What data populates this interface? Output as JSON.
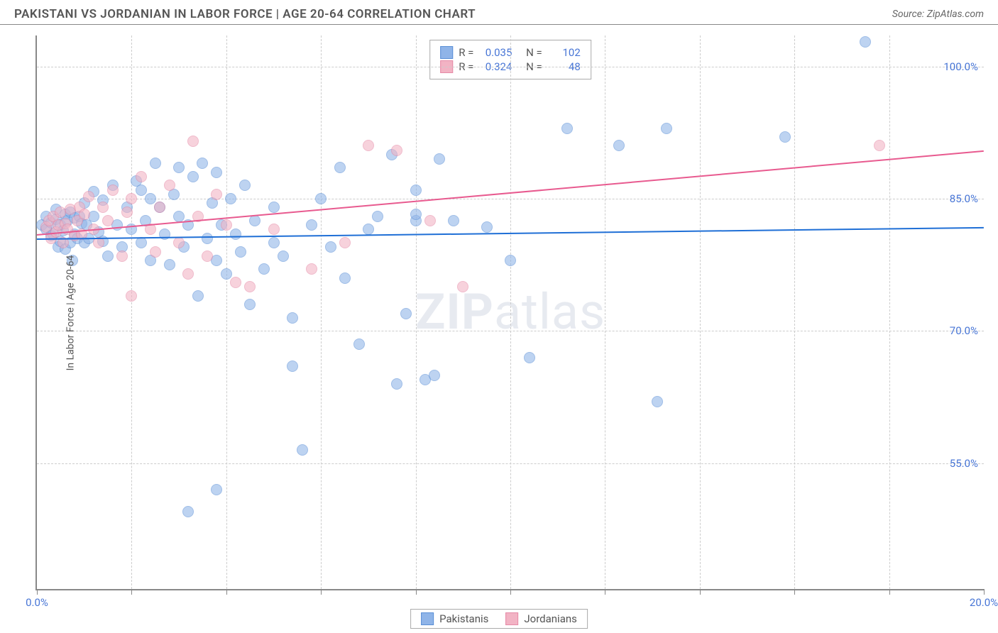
{
  "title": "PAKISTANI VS JORDANIAN IN LABOR FORCE | AGE 20-64 CORRELATION CHART",
  "source": "Source: ZipAtlas.com",
  "watermark_bold": "ZIP",
  "watermark_rest": "atlas",
  "ylabel": "In Labor Force | Age 20-64",
  "chart": {
    "type": "scatter",
    "xlim": [
      0,
      20
    ],
    "ylim": [
      40.75,
      103.5
    ],
    "ytick_values": [
      55.0,
      70.0,
      85.0,
      100.0
    ],
    "ytick_labels": [
      "55.0%",
      "70.0%",
      "85.0%",
      "100.0%"
    ],
    "xtick_values": [
      0,
      2,
      4,
      6,
      8,
      10,
      12,
      14,
      16,
      18,
      20
    ],
    "xtick_labels_shown": {
      "0": "0.0%",
      "20": "20.0%"
    },
    "grid_color": "#cccccc",
    "axis_color": "#888888",
    "label_color": "#4876d6",
    "background_color": "#ffffff",
    "point_radius": 8,
    "point_opacity": 0.58,
    "series": [
      {
        "name": "Pakistanis",
        "fill_color": "#8fb4e8",
        "stroke_color": "#5a8fd6",
        "line_color": "#1f6fd6",
        "R": "0.035",
        "N": "102",
        "trend": {
          "x1": 0,
          "y1": 80.5,
          "x2": 20,
          "y2": 81.8
        },
        "points": [
          [
            0.1,
            82.0
          ],
          [
            0.2,
            81.5
          ],
          [
            0.2,
            83.0
          ],
          [
            0.3,
            82.3
          ],
          [
            0.3,
            80.8
          ],
          [
            0.35,
            81.0
          ],
          [
            0.4,
            82.7
          ],
          [
            0.4,
            83.8
          ],
          [
            0.45,
            79.5
          ],
          [
            0.5,
            82.0
          ],
          [
            0.5,
            80.2
          ],
          [
            0.55,
            81.4
          ],
          [
            0.6,
            83.2
          ],
          [
            0.6,
            79.3
          ],
          [
            0.65,
            82.5
          ],
          [
            0.7,
            80.0
          ],
          [
            0.7,
            83.5
          ],
          [
            0.75,
            78.0
          ],
          [
            0.8,
            82.8
          ],
          [
            0.8,
            81.0
          ],
          [
            0.85,
            80.5
          ],
          [
            0.9,
            83.0
          ],
          [
            0.95,
            82.2
          ],
          [
            1.0,
            84.5
          ],
          [
            1.0,
            80.0
          ],
          [
            1.05,
            82.0
          ],
          [
            1.1,
            80.5
          ],
          [
            1.2,
            83.0
          ],
          [
            1.2,
            85.8
          ],
          [
            1.3,
            81.2
          ],
          [
            1.4,
            80.2
          ],
          [
            1.4,
            84.8
          ],
          [
            1.5,
            78.5
          ],
          [
            1.6,
            86.5
          ],
          [
            1.7,
            82.0
          ],
          [
            1.8,
            79.5
          ],
          [
            1.9,
            84.0
          ],
          [
            2.0,
            81.5
          ],
          [
            2.1,
            87.0
          ],
          [
            2.2,
            80.0
          ],
          [
            2.2,
            86.0
          ],
          [
            2.3,
            82.5
          ],
          [
            2.4,
            85.0
          ],
          [
            2.4,
            78.0
          ],
          [
            2.5,
            89.0
          ],
          [
            2.6,
            84.0
          ],
          [
            2.7,
            81.0
          ],
          [
            2.8,
            77.5
          ],
          [
            2.9,
            85.5
          ],
          [
            3.0,
            83.0
          ],
          [
            3.0,
            88.5
          ],
          [
            3.1,
            79.5
          ],
          [
            3.2,
            82.0
          ],
          [
            3.3,
            87.5
          ],
          [
            3.4,
            74.0
          ],
          [
            3.5,
            89.0
          ],
          [
            3.6,
            80.5
          ],
          [
            3.7,
            84.5
          ],
          [
            3.8,
            78.0
          ],
          [
            3.8,
            88.0
          ],
          [
            3.9,
            82.0
          ],
          [
            4.0,
            76.5
          ],
          [
            4.1,
            85.0
          ],
          [
            4.2,
            81.0
          ],
          [
            4.3,
            79.0
          ],
          [
            4.4,
            86.5
          ],
          [
            4.5,
            73.0
          ],
          [
            4.6,
            82.5
          ],
          [
            4.8,
            77.0
          ],
          [
            5.0,
            84.0
          ],
          [
            5.0,
            80.0
          ],
          [
            5.2,
            78.5
          ],
          [
            5.4,
            71.5
          ],
          [
            5.4,
            66.0
          ],
          [
            5.6,
            56.5
          ],
          [
            5.8,
            82.0
          ],
          [
            6.0,
            85.0
          ],
          [
            6.2,
            79.5
          ],
          [
            6.4,
            88.5
          ],
          [
            6.5,
            76.0
          ],
          [
            6.8,
            68.5
          ],
          [
            7.0,
            81.5
          ],
          [
            7.2,
            83.0
          ],
          [
            7.5,
            90.0
          ],
          [
            7.6,
            64.0
          ],
          [
            7.8,
            72.0
          ],
          [
            8.0,
            86.0
          ],
          [
            8.0,
            82.5
          ],
          [
            8.0,
            83.2
          ],
          [
            8.2,
            64.5
          ],
          [
            8.4,
            65.0
          ],
          [
            8.5,
            89.5
          ],
          [
            8.8,
            82.5
          ],
          [
            9.5,
            81.8
          ],
          [
            10.0,
            78.0
          ],
          [
            10.4,
            67.0
          ],
          [
            11.2,
            93.0
          ],
          [
            12.3,
            91.0
          ],
          [
            13.3,
            93.0
          ],
          [
            13.1,
            62.0
          ],
          [
            15.8,
            92.0
          ],
          [
            17.5,
            102.8
          ],
          [
            3.2,
            49.5
          ],
          [
            3.8,
            52.0
          ]
        ]
      },
      {
        "name": "Jordanians",
        "fill_color": "#f2b3c4",
        "stroke_color": "#e68aa6",
        "line_color": "#e85a8f",
        "R": "0.324",
        "N": "48",
        "trend": {
          "x1": 0,
          "y1": 81.0,
          "x2": 20,
          "y2": 90.5
        },
        "points": [
          [
            0.2,
            81.8
          ],
          [
            0.25,
            82.5
          ],
          [
            0.3,
            80.5
          ],
          [
            0.35,
            83.0
          ],
          [
            0.4,
            81.2
          ],
          [
            0.45,
            82.0
          ],
          [
            0.5,
            83.5
          ],
          [
            0.55,
            80.0
          ],
          [
            0.6,
            82.2
          ],
          [
            0.65,
            81.5
          ],
          [
            0.7,
            83.8
          ],
          [
            0.8,
            80.8
          ],
          [
            0.85,
            82.5
          ],
          [
            0.9,
            84.0
          ],
          [
            0.95,
            81.0
          ],
          [
            1.0,
            83.2
          ],
          [
            1.1,
            85.2
          ],
          [
            1.2,
            81.5
          ],
          [
            1.3,
            80.0
          ],
          [
            1.4,
            84.0
          ],
          [
            1.5,
            82.5
          ],
          [
            1.6,
            86.0
          ],
          [
            1.8,
            78.5
          ],
          [
            1.9,
            83.5
          ],
          [
            2.0,
            85.0
          ],
          [
            2.2,
            87.5
          ],
          [
            2.4,
            81.5
          ],
          [
            2.5,
            79.0
          ],
          [
            2.6,
            84.0
          ],
          [
            2.8,
            86.5
          ],
          [
            3.0,
            80.0
          ],
          [
            3.2,
            76.5
          ],
          [
            3.3,
            91.5
          ],
          [
            3.4,
            83.0
          ],
          [
            3.6,
            78.5
          ],
          [
            3.8,
            85.5
          ],
          [
            4.0,
            82.0
          ],
          [
            4.2,
            75.5
          ],
          [
            4.5,
            75.0
          ],
          [
            5.0,
            81.5
          ],
          [
            5.8,
            77.0
          ],
          [
            6.5,
            80.0
          ],
          [
            7.0,
            91.0
          ],
          [
            7.6,
            90.5
          ],
          [
            8.3,
            82.5
          ],
          [
            9.0,
            75.0
          ],
          [
            17.8,
            91.0
          ],
          [
            2.0,
            74.0
          ]
        ]
      }
    ]
  },
  "stats_labels": {
    "R": "R =",
    "N": "N ="
  },
  "legend": {
    "series1": "Pakistanis",
    "series2": "Jordanians"
  }
}
